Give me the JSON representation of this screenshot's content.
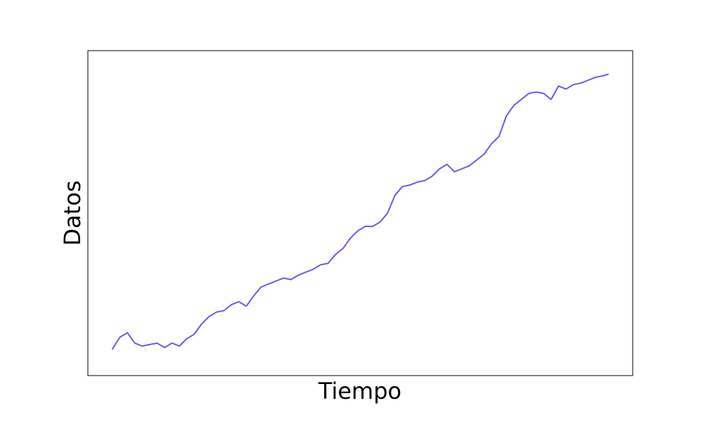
{
  "chart_data": {
    "type": "line",
    "title": "",
    "xlabel": "Tiempo",
    "ylabel": "Datos",
    "grid": false,
    "legend": "none",
    "xlim": [
      0,
      100
    ],
    "ylim": [
      0,
      100
    ],
    "line_color": "#6a5ae6",
    "series": [
      {
        "x": [
          0,
          1.5,
          3,
          4.5,
          6,
          7.5,
          9,
          10.5,
          12,
          13.5,
          15,
          16.5,
          18,
          19.5,
          21,
          22.5,
          24,
          25.5,
          27,
          28.5,
          30,
          31.5,
          33,
          34.5,
          36,
          37.5,
          39,
          40.5,
          42,
          43.5,
          45,
          46.5,
          48,
          49.5,
          51,
          52.5,
          54,
          55.5,
          57,
          58.5,
          60,
          61.5,
          63,
          64.5,
          66,
          67.5,
          69,
          70.5,
          72,
          73.5,
          75,
          76.5,
          78,
          79.5,
          81,
          82.5,
          84,
          85.5,
          87,
          88.5,
          90,
          91.5,
          93,
          94.5,
          96,
          97.5,
          99,
          100
        ],
        "values": [
          4,
          8,
          9.5,
          6,
          5,
          5.5,
          6,
          4.5,
          6,
          5,
          7.5,
          9,
          12.5,
          15,
          16.5,
          17,
          19,
          20,
          18.5,
          22,
          25,
          26,
          27,
          28,
          27.5,
          29,
          30,
          31,
          32.5,
          33,
          36,
          38,
          41.5,
          44,
          45.5,
          45.5,
          47,
          50,
          56,
          59,
          59.5,
          60.5,
          61,
          62.5,
          65,
          66.5,
          64,
          65,
          66,
          68,
          70,
          73.5,
          76,
          83,
          86.5,
          88.5,
          90.5,
          91,
          90.5,
          88.5,
          93,
          92,
          93.5,
          94,
          95,
          96,
          96.5,
          97
        ]
      }
    ]
  }
}
